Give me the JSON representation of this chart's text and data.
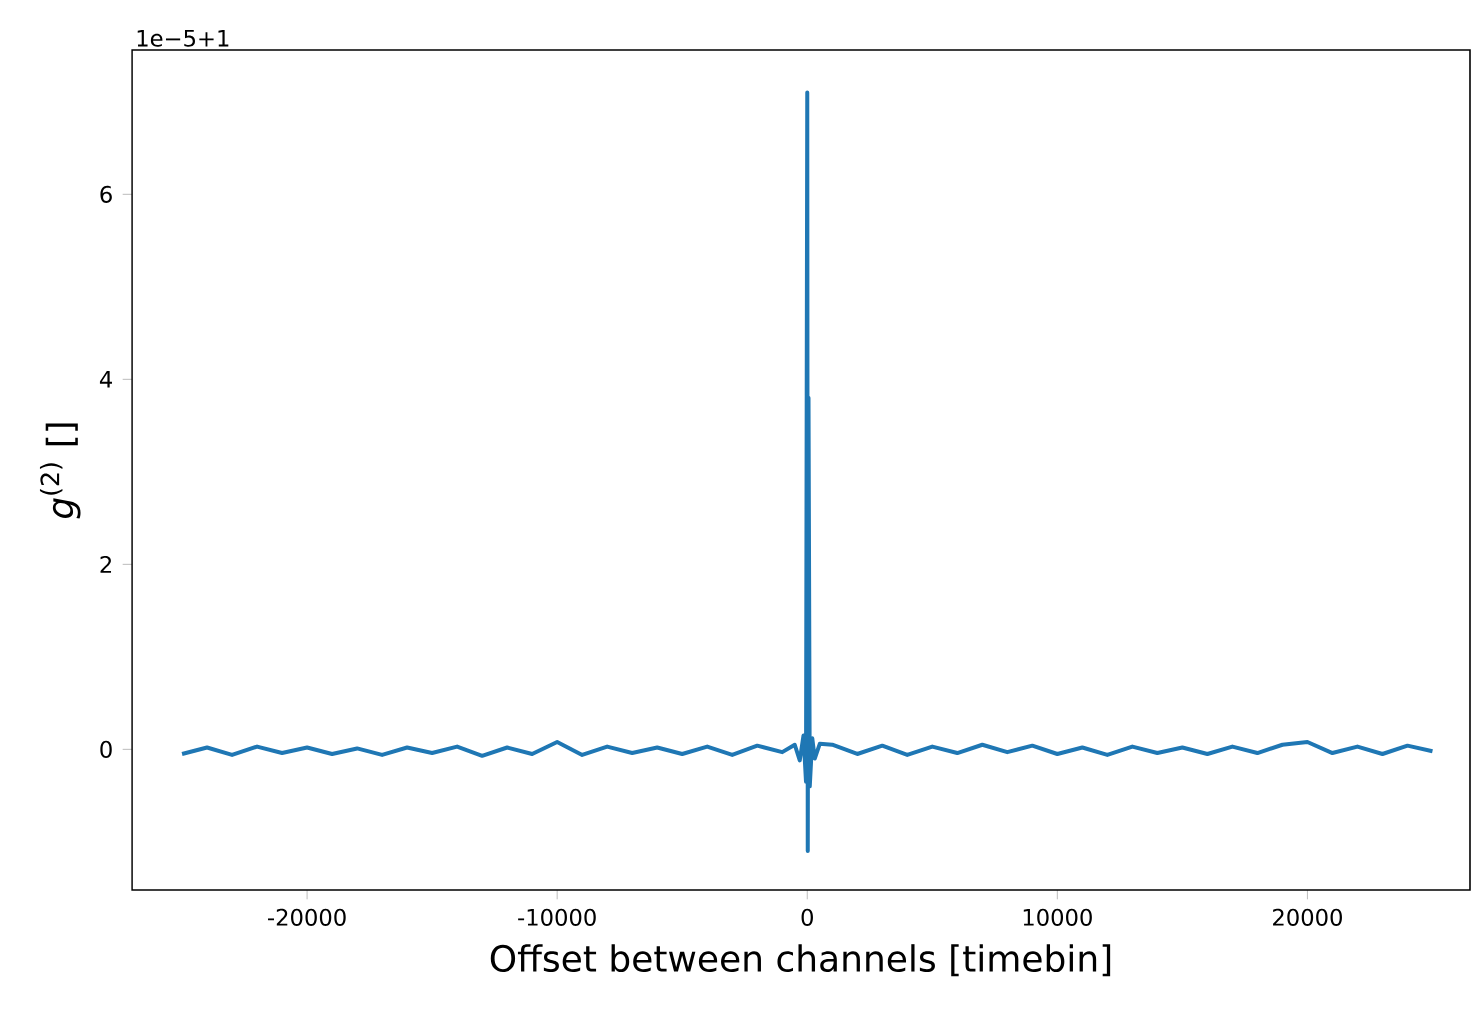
{
  "chart_data": {
    "type": "line",
    "xlabel": "Offset between channels [timebin]",
    "ylabel": "*g*$^{(2)}$ []",
    "annotations": [
      "1e−5+1"
    ],
    "xlim": [
      -27000,
      26500
    ],
    "ylim": [
      -1.52,
      7.56
    ],
    "xticks": [
      -20000,
      -10000,
      0,
      10000,
      20000
    ],
    "yticks": [
      0,
      2,
      4,
      6
    ],
    "series": [
      {
        "color": "#1f77b4",
        "x": [
          -25000,
          -24000,
          -23000,
          -22000,
          -21000,
          -20000,
          -19000,
          -18000,
          -17000,
          -16000,
          -15000,
          -14000,
          -13000,
          -12000,
          -11000,
          -10000,
          -9000,
          -8000,
          -7000,
          -6000,
          -5000,
          -4000,
          -3000,
          -2000,
          -1000,
          -500,
          -300,
          -150,
          -50,
          0,
          20,
          50,
          100,
          200,
          300,
          500,
          1000,
          2000,
          3000,
          4000,
          5000,
          6000,
          7000,
          8000,
          9000,
          10000,
          11000,
          12000,
          13000,
          14000,
          15000,
          16000,
          17000,
          18000,
          19000,
          20000,
          21000,
          22000,
          23000,
          24000,
          25000
        ],
        "values": [
          -0.05,
          0.02,
          -0.06,
          0.03,
          -0.04,
          0.02,
          -0.05,
          0.01,
          -0.06,
          0.02,
          -0.04,
          0.03,
          -0.07,
          0.02,
          -0.05,
          0.08,
          -0.06,
          0.03,
          -0.04,
          0.02,
          -0.05,
          0.03,
          -0.06,
          0.04,
          -0.03,
          0.05,
          -0.12,
          0.15,
          -0.35,
          7.1,
          -1.1,
          3.8,
          -0.4,
          0.12,
          -0.1,
          0.06,
          0.05,
          -0.05,
          0.04,
          -0.06,
          0.03,
          -0.04,
          0.05,
          -0.03,
          0.04,
          -0.05,
          0.02,
          -0.06,
          0.03,
          -0.04,
          0.02,
          -0.05,
          0.03,
          -0.04,
          0.05,
          0.08,
          -0.04,
          0.03,
          -0.05,
          0.04,
          -0.02
        ]
      }
    ]
  }
}
